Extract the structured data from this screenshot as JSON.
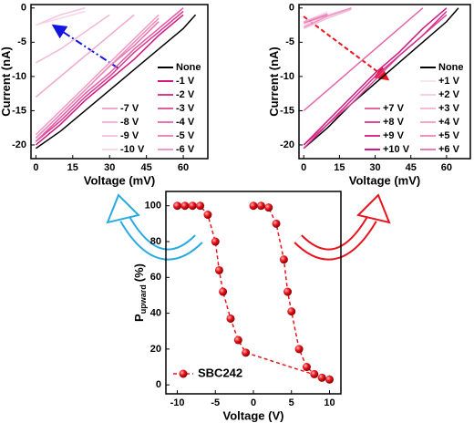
{
  "chart_data": [
    {
      "type": "line",
      "xlabel": "Voltage (mV)",
      "ylabel": "Current (nA)",
      "x": [
        0,
        10,
        20,
        30,
        40,
        50,
        60,
        65
      ],
      "xlim": [
        -2,
        70
      ],
      "ylim": [
        -22,
        0.5
      ],
      "xticks": [
        0,
        15,
        30,
        45,
        60
      ],
      "yticks": [
        -20,
        -15,
        -10,
        -5,
        0
      ],
      "series": [
        {
          "name": "None",
          "color": "#000000",
          "values": [
            -20.5,
            -18,
            -15,
            -12,
            -9,
            -6,
            -3,
            -1
          ]
        },
        {
          "name": "-1 V",
          "color": "#d6137f",
          "values": [
            -20,
            -17,
            -13.5,
            -10.5,
            -7.5,
            -4,
            -1,
            null
          ]
        },
        {
          "name": "-2 V",
          "color": "#dc3a91",
          "values": [
            -19.5,
            -16.5,
            -13,
            -10,
            -6.5,
            -3.5,
            -0.5,
            null
          ]
        },
        {
          "name": "-3 V",
          "color": "#e35ca2",
          "values": [
            -19.5,
            -16,
            -12.5,
            -9.5,
            -6,
            -3,
            0,
            null
          ]
        },
        {
          "name": "-4 V",
          "color": "#e874b0",
          "values": [
            -19,
            -15.5,
            -12,
            -8.5,
            -5.5,
            -2,
            null,
            null
          ]
        },
        {
          "name": "-5 V",
          "color": "#ec88bb",
          "values": [
            -19,
            -15.5,
            -12,
            -8.5,
            -5,
            -1.5,
            null,
            null
          ]
        },
        {
          "name": "-6 V",
          "color": "#ef9bc6",
          "values": [
            -18.5,
            -15,
            -11.5,
            -8,
            -4.5,
            -1,
            null,
            null
          ]
        },
        {
          "name": "-7 V",
          "color": "#f0a8cd",
          "values": [
            -13,
            -10,
            -7,
            -4,
            -1,
            null,
            null,
            null
          ]
        },
        {
          "name": "-8 V",
          "color": "#f3b8d7",
          "values": [
            -8,
            -6,
            -3.5,
            -1,
            null,
            null,
            null,
            null
          ]
        },
        {
          "name": "-9 V",
          "color": "#f5c6df",
          "values": [
            -2.5,
            -1,
            0,
            null,
            null,
            null,
            null,
            null
          ]
        },
        {
          "name": "-10 V",
          "color": "#f8d6e8",
          "values": [
            -2.5,
            -1.5,
            -0.5,
            null,
            null,
            null,
            null,
            null
          ]
        }
      ]
    },
    {
      "type": "line",
      "xlabel": "Voltage (mV)",
      "ylabel": "Current (nA)",
      "x": [
        0,
        10,
        20,
        30,
        40,
        50,
        60,
        65
      ],
      "xlim": [
        -2,
        70
      ],
      "ylim": [
        -22,
        0.5
      ],
      "xticks": [
        0,
        15,
        30,
        45,
        60
      ],
      "yticks": [
        -20,
        -15,
        -10,
        -5,
        0
      ],
      "series": [
        {
          "name": "None",
          "color": "#000000",
          "values": [
            -20.5,
            -17.5,
            -14,
            -11,
            -8,
            -5,
            -2,
            0
          ]
        },
        {
          "name": "+1 V",
          "color": "#fbe3ee",
          "values": [
            -2,
            -0.5,
            null,
            null,
            null,
            null,
            null,
            null
          ]
        },
        {
          "name": "+2 V",
          "color": "#f8d0e3",
          "values": [
            -2.5,
            -1,
            0,
            null,
            null,
            null,
            null,
            null
          ]
        },
        {
          "name": "+3 V",
          "color": "#f4bcd8",
          "values": [
            -3,
            -1.5,
            -0.2,
            null,
            null,
            null,
            null,
            null
          ]
        },
        {
          "name": "+4 V",
          "color": "#f0a8cd",
          "values": [
            -2,
            -0.8,
            null,
            null,
            null,
            null,
            null,
            null
          ]
        },
        {
          "name": "+5 V",
          "color": "#ec92c1",
          "values": [
            -2.8,
            -1.2,
            0,
            null,
            null,
            null,
            null,
            null
          ]
        },
        {
          "name": "+6 V",
          "color": "#e87cb5",
          "values": [
            -2.2,
            -1,
            null,
            null,
            null,
            null,
            null,
            null
          ]
        },
        {
          "name": "+7 V",
          "color": "#e466a9",
          "values": [
            -15,
            -12,
            -9,
            -6,
            -3,
            0,
            null,
            null
          ]
        },
        {
          "name": "+8 V",
          "color": "#de4a9a",
          "values": [
            -20,
            -17,
            -14,
            -10.5,
            -7,
            -4,
            -1,
            null
          ]
        },
        {
          "name": "+9 V",
          "color": "#d8308c",
          "values": [
            -20.5,
            -17,
            -13.5,
            -10,
            -7,
            -4,
            -0.5,
            null
          ]
        },
        {
          "name": "+10 V",
          "color": "#d01a7f",
          "values": [
            -20,
            -16.5,
            -13,
            -9.5,
            -6.5,
            -3,
            0,
            null
          ]
        }
      ]
    },
    {
      "type": "scatter",
      "xlabel": "Voltage (V)",
      "ylabel": "P",
      "ylabel_sub": "upward",
      "ylabel_unit": "(%)",
      "xlim": [
        -11.5,
        11.5
      ],
      "ylim": [
        -5,
        108
      ],
      "xticks": [
        -10,
        -5,
        0,
        5,
        10
      ],
      "yticks": [
        0,
        20,
        40,
        60,
        80,
        100
      ],
      "series": [
        {
          "name": "SBC242",
          "color": "#e8141e",
          "x": [
            -10,
            -9,
            -8,
            -7,
            -6,
            -5,
            -4.5,
            -4,
            -3,
            -2,
            -1,
            10,
            9,
            8,
            7,
            6,
            5,
            4.5,
            4,
            3,
            2,
            1,
            0
          ],
          "values": [
            100,
            100,
            100,
            100,
            95,
            80,
            64,
            52,
            37,
            25,
            18,
            3,
            4,
            6,
            10,
            20,
            41,
            52,
            70,
            90,
            99,
            100,
            100
          ]
        }
      ]
    }
  ]
}
